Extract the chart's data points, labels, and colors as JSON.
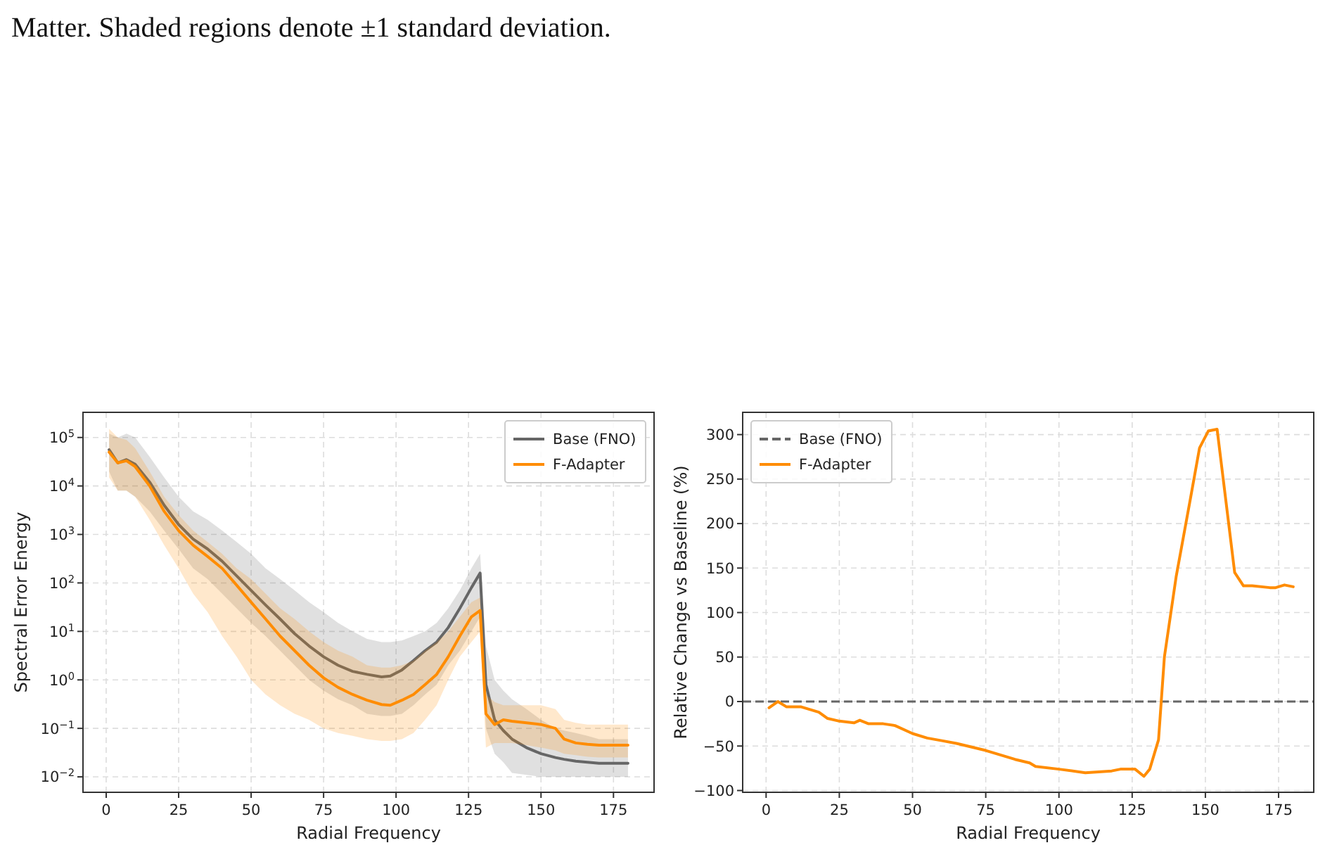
{
  "chart_data": [
    {
      "type": "line",
      "xlabel": "Radial Frequency",
      "ylabel": "Spectral Error Energy",
      "annotations": [
        "Matter. Shaded regions denote ±1 standard deviation."
      ],
      "log": "y",
      "grid": true,
      "legend": "top right",
      "xlim": [
        -8,
        189
      ],
      "xticks": [
        0,
        25,
        50,
        75,
        100,
        125,
        150,
        175
      ],
      "ylim": [
        0.0048,
        330000
      ],
      "yticks": [
        {
          "value": 0.01,
          "label": "10$^{−2}$"
        },
        {
          "value": 0.1,
          "label": "10$^{−1}$"
        },
        {
          "value": 1,
          "label": "10$^{0}$"
        },
        {
          "value": 10,
          "label": "10$^{1}$"
        },
        {
          "value": 100,
          "label": "10$^{2}$"
        },
        {
          "value": 1000,
          "label": "10$^{3}$"
        },
        {
          "value": 10000,
          "label": "10$^{4}$"
        },
        {
          "value": 100000,
          "label": "10$^{5}$"
        }
      ],
      "x": [
        1,
        4,
        7,
        10,
        15,
        20,
        25,
        30,
        35,
        40,
        45,
        50,
        55,
        60,
        65,
        70,
        75,
        80,
        85,
        90,
        95,
        98,
        102,
        106,
        110,
        114,
        118,
        122,
        126,
        129,
        131,
        134,
        137,
        140,
        145,
        150,
        155,
        158,
        162,
        166,
        170,
        175,
        180
      ],
      "series": [
        {
          "name": "Base (FNO)",
          "color": "#666666",
          "values": [
            56000,
            30000,
            35000,
            28000,
            12000,
            4000,
            1600,
            800,
            500,
            280,
            140,
            70,
            35,
            18,
            9,
            5,
            3,
            2,
            1.5,
            1.3,
            1.15,
            1.2,
            1.6,
            2.5,
            4,
            6,
            12,
            30,
            80,
            160,
            0.8,
            0.15,
            0.09,
            0.06,
            0.04,
            0.03,
            0.025,
            0.023,
            0.021,
            0.02,
            0.019,
            0.019,
            0.019
          ],
          "upper": [
            120000,
            100000,
            120000,
            100000,
            40000,
            15000,
            6000,
            3000,
            2000,
            1200,
            700,
            400,
            200,
            120,
            70,
            40,
            25,
            15,
            10,
            7,
            6,
            6,
            6.5,
            8,
            10,
            15,
            30,
            70,
            200,
            400,
            5,
            1,
            0.6,
            0.4,
            0.25,
            0.15,
            0.1,
            0.09,
            0.08,
            0.07,
            0.06,
            0.06,
            0.06
          ],
          "lower": [
            20000,
            8000,
            8000,
            6000,
            3000,
            1200,
            500,
            200,
            120,
            60,
            30,
            15,
            8,
            4,
            2,
            1,
            0.6,
            0.4,
            0.3,
            0.2,
            0.18,
            0.18,
            0.2,
            0.3,
            0.5,
            0.8,
            2,
            4,
            10,
            20,
            0.1,
            0.03,
            0.02,
            0.012,
            0.011,
            0.01,
            0.01,
            0.01,
            0.01,
            0.01,
            0.01,
            0.01,
            0.01
          ]
        },
        {
          "name": "F-Adapter",
          "color": "#ff8c00",
          "values": [
            50000,
            30000,
            33000,
            25000,
            10000,
            3000,
            1200,
            600,
            350,
            200,
            90,
            40,
            18,
            8,
            4,
            2,
            1.1,
            0.7,
            0.5,
            0.38,
            0.31,
            0.3,
            0.38,
            0.5,
            0.8,
            1.3,
            3,
            8,
            20,
            27,
            0.2,
            0.12,
            0.15,
            0.14,
            0.13,
            0.12,
            0.1,
            0.06,
            0.05,
            0.047,
            0.045,
            0.045,
            0.045
          ],
          "upper": [
            150000,
            100000,
            90000,
            60000,
            20000,
            6000,
            2500,
            1200,
            700,
            400,
            200,
            120,
            60,
            30,
            18,
            10,
            6,
            4,
            3,
            2,
            1.8,
            1.8,
            2,
            2.5,
            4,
            6,
            10,
            20,
            40,
            50,
            0.5,
            0.35,
            0.3,
            0.3,
            0.3,
            0.3,
            0.25,
            0.15,
            0.13,
            0.12,
            0.12,
            0.12,
            0.12
          ],
          "lower": [
            15000,
            8000,
            8000,
            6000,
            2000,
            600,
            200,
            60,
            25,
            8,
            3,
            1,
            0.5,
            0.3,
            0.2,
            0.15,
            0.1,
            0.08,
            0.07,
            0.06,
            0.055,
            0.055,
            0.06,
            0.08,
            0.15,
            0.3,
            1,
            3,
            6,
            10,
            0.04,
            0.05,
            0.05,
            0.05,
            0.045,
            0.04,
            0.035,
            0.03,
            0.028,
            0.026,
            0.025,
            0.025,
            0.025
          ]
        }
      ]
    },
    {
      "type": "line",
      "xlabel": "Radial Frequency",
      "ylabel": "Relative Change vs Baseline (%)",
      "grid": true,
      "legend": "top left",
      "xlim": [
        -8,
        187
      ],
      "xticks": [
        0,
        25,
        50,
        75,
        100,
        125,
        150,
        175
      ],
      "ylim": [
        -102,
        325
      ],
      "yticks": [
        {
          "value": -100,
          "label": "−100"
        },
        {
          "value": -50,
          "label": "−50"
        },
        0,
        50,
        100,
        150,
        200,
        250,
        300
      ],
      "ref_lines": [
        {
          "axis": "y",
          "value": 0,
          "label": "Base (FNO)",
          "color": "#666666",
          "line_style": "dashed"
        }
      ],
      "series": [
        {
          "name": "F-Adapter",
          "color": "#ff8c00",
          "x": [
            1,
            4,
            7,
            12,
            18,
            21,
            25,
            30,
            32,
            35,
            40,
            44,
            50,
            55,
            60,
            65,
            70,
            75,
            80,
            85,
            90,
            92,
            100,
            109,
            118,
            121,
            126,
            129,
            131,
            134,
            136,
            140,
            145,
            148,
            151,
            154,
            160,
            163,
            166,
            172,
            174,
            177,
            180
          ],
          "values": [
            -7,
            0,
            -6,
            -6,
            -12,
            -19,
            -22,
            -24,
            -21,
            -25,
            -25,
            -27,
            -36,
            -41,
            -44,
            -47,
            -51,
            -55,
            -60,
            -65,
            -69,
            -73,
            -76,
            -80,
            -78,
            -76,
            -76,
            -84,
            -76,
            -43,
            50,
            140,
            230,
            285,
            304,
            306,
            145,
            130,
            130,
            128,
            128,
            131,
            129
          ]
        }
      ]
    }
  ]
}
